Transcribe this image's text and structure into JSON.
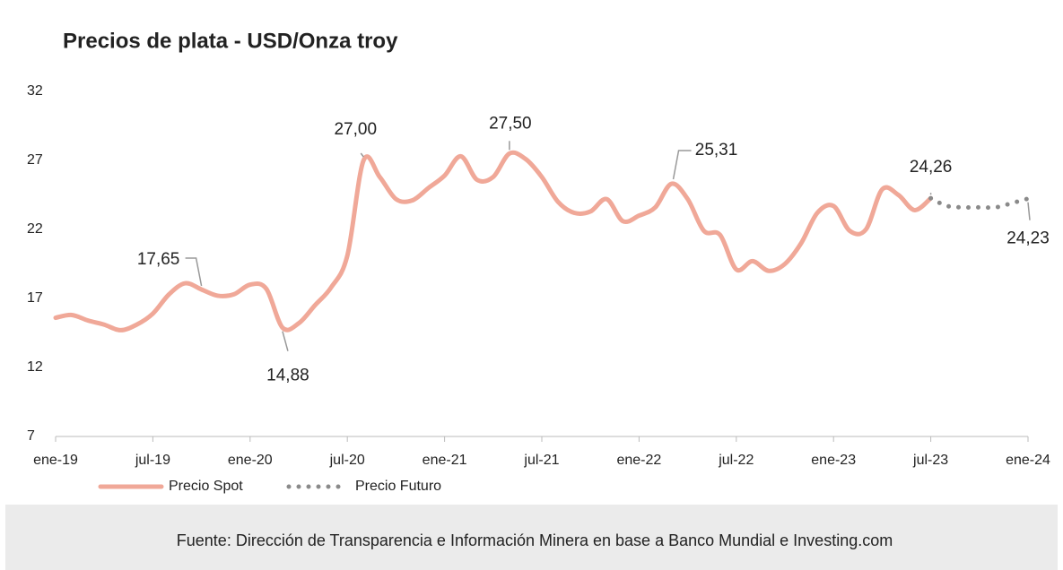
{
  "chart_data": {
    "type": "line",
    "title": "Precios de plata - USD/Onza troy",
    "source": "Fuente: Dirección de Transparencia e Información Minera en base a Banco Mundial e Investing.com",
    "categories": [
      "ene-19",
      null,
      null,
      null,
      null,
      null,
      "jul-19",
      null,
      null,
      null,
      null,
      null,
      "ene-20",
      null,
      null,
      null,
      null,
      null,
      "jul-20",
      null,
      null,
      null,
      null,
      null,
      "ene-21",
      null,
      null,
      null,
      null,
      null,
      "jul-21",
      null,
      null,
      null,
      null,
      null,
      "ene-22",
      null,
      null,
      null,
      null,
      null,
      "jul-22",
      null,
      null,
      null,
      null,
      null,
      "ene-23",
      null,
      null,
      null,
      null,
      null,
      "jul-23",
      null,
      null,
      null,
      null,
      null,
      "ene-24"
    ],
    "series": [
      {
        "name": "Precio Spot",
        "color": "#f0a898",
        "values": [
          15.6,
          15.8,
          15.4,
          15.1,
          14.7,
          15.1,
          15.9,
          17.3,
          18.1,
          17.65,
          17.2,
          17.3,
          18.0,
          17.7,
          14.88,
          15.2,
          16.5,
          17.8,
          20.1,
          27.0,
          25.8,
          24.2,
          24.1,
          25.0,
          25.9,
          27.3,
          25.6,
          25.8,
          27.5,
          27.1,
          25.8,
          24.0,
          23.2,
          23.3,
          24.2,
          22.6,
          23.0,
          23.6,
          25.31,
          24.2,
          21.9,
          21.6,
          19.1,
          19.7,
          19.0,
          19.5,
          21.0,
          23.2,
          23.7,
          21.9,
          22.0,
          24.9,
          24.5,
          23.4,
          24.26,
          null,
          null,
          null,
          null,
          null,
          null
        ],
        "value_labels": [
          null,
          null,
          null,
          null,
          null,
          null,
          null,
          null,
          null,
          "17,65",
          null,
          null,
          null,
          null,
          "14,88",
          null,
          null,
          null,
          null,
          "27,00",
          null,
          null,
          null,
          null,
          null,
          null,
          null,
          null,
          "27,50",
          null,
          null,
          null,
          null,
          null,
          null,
          null,
          null,
          null,
          "25,31",
          null,
          null,
          null,
          null,
          null,
          null,
          null,
          null,
          null,
          null,
          null,
          null,
          null,
          null,
          null,
          "24,26",
          null,
          null,
          null,
          null,
          null,
          null
        ]
      },
      {
        "name": "Precio Futuro",
        "color": "#8a8a8a",
        "values": [
          null,
          null,
          null,
          null,
          null,
          null,
          null,
          null,
          null,
          null,
          null,
          null,
          null,
          null,
          null,
          null,
          null,
          null,
          null,
          null,
          null,
          null,
          null,
          null,
          null,
          null,
          null,
          null,
          null,
          null,
          null,
          null,
          null,
          null,
          null,
          null,
          null,
          null,
          null,
          null,
          null,
          null,
          null,
          null,
          null,
          null,
          null,
          null,
          null,
          null,
          null,
          null,
          null,
          null,
          24.26,
          23.7,
          23.6,
          23.6,
          23.6,
          23.9,
          24.23
        ],
        "value_labels": [
          null,
          null,
          null,
          null,
          null,
          null,
          null,
          null,
          null,
          null,
          null,
          null,
          null,
          null,
          null,
          null,
          null,
          null,
          null,
          null,
          null,
          null,
          null,
          null,
          null,
          null,
          null,
          null,
          null,
          null,
          null,
          null,
          null,
          null,
          null,
          null,
          null,
          null,
          null,
          null,
          null,
          null,
          null,
          null,
          null,
          null,
          null,
          null,
          null,
          null,
          null,
          null,
          null,
          null,
          null,
          null,
          null,
          null,
          null,
          null,
          "24,23"
        ]
      }
    ],
    "ylim": [
      7,
      32
    ],
    "yticks": [
      7,
      12,
      17,
      22,
      27,
      32
    ]
  }
}
